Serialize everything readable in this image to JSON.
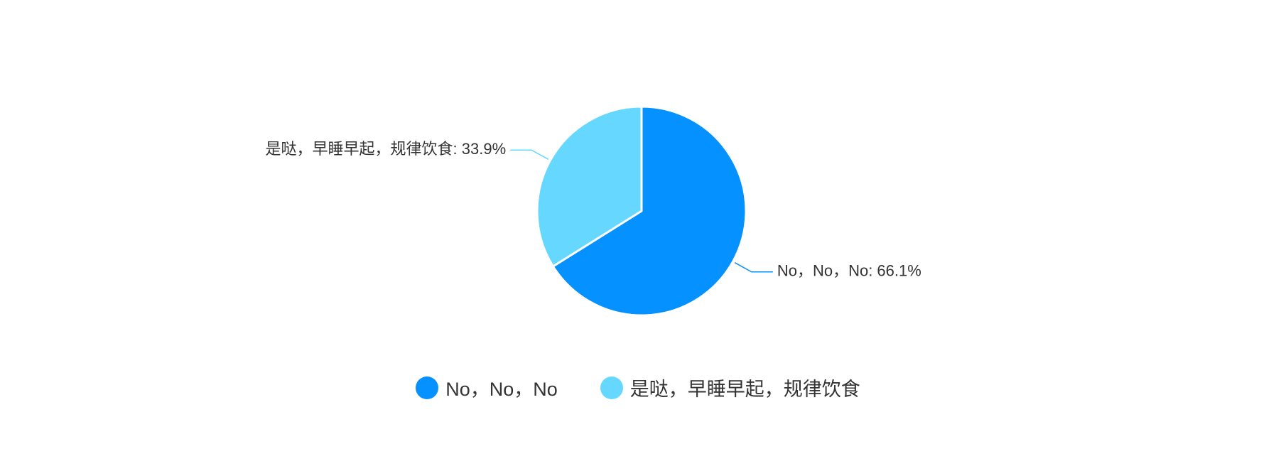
{
  "chart_data": {
    "type": "pie",
    "slices": [
      {
        "name": "No，No，No",
        "value": 66.1,
        "label": "No，No，No: 66.1%",
        "color": "#0591ff"
      },
      {
        "name": "是哒，早睡早起，规律饮食",
        "value": 33.9,
        "label": "是哒，早睡早起，规律饮食: 33.9%",
        "color": "#66d8ff"
      }
    ],
    "legend": {
      "position": "bottom",
      "items": [
        "No，No，No",
        "是哒，早睡早起，规律饮食"
      ]
    }
  }
}
